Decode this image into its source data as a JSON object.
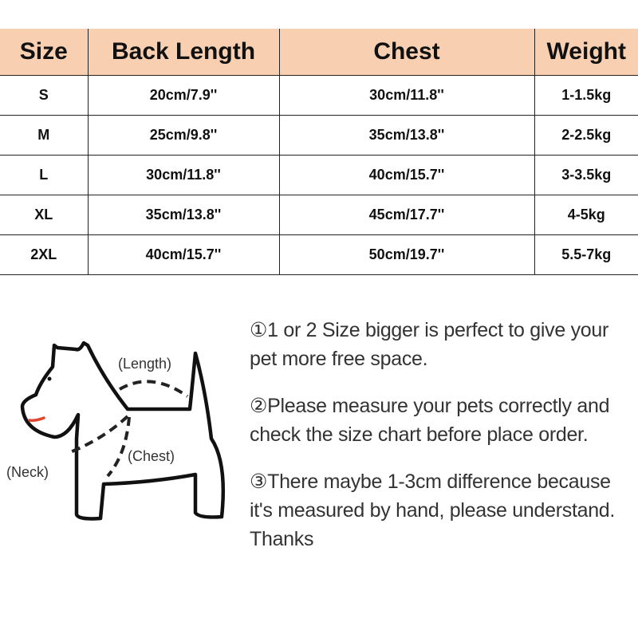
{
  "table": {
    "headers": [
      "Size",
      "Back Length",
      "Chest",
      "Weight"
    ],
    "rows": [
      [
        "S",
        "20cm/7.9''",
        "30cm/11.8''",
        "1-1.5kg"
      ],
      [
        "M",
        "25cm/9.8''",
        "35cm/13.8''",
        "2-2.5kg"
      ],
      [
        "L",
        "30cm/11.8''",
        "40cm/15.7''",
        "3-3.5kg"
      ],
      [
        "XL",
        "35cm/13.8''",
        "45cm/17.7''",
        "4-5kg"
      ],
      [
        "2XL",
        "40cm/15.7''",
        "50cm/19.7''",
        "5.5-7kg"
      ]
    ],
    "header_color": "#f8cfb0"
  },
  "diagram": {
    "labels": {
      "length": "(Length)",
      "chest": "(Chest)",
      "neck": "(Neck)"
    }
  },
  "notes": [
    "①1 or 2 Size bigger is perfect to give your pet more free space.",
    "②Please measure your pets correctly and check the size chart before place order.",
    "③There maybe 1-3cm difference because it's measured by hand, please understand. Thanks"
  ]
}
